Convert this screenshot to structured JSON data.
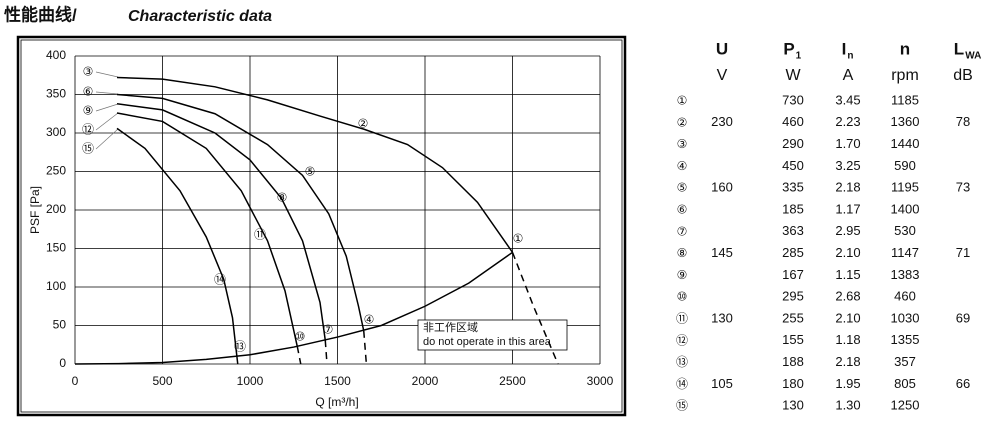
{
  "title_cn": "性能曲线/",
  "title_en": "Characteristic data",
  "chart_data": {
    "type": "line",
    "xlabel": "Q [m³/h]",
    "ylabel": "PSF [Pa]",
    "xlim": [
      0,
      3000
    ],
    "xticks": [
      0,
      500,
      1000,
      1500,
      2000,
      2500,
      3000
    ],
    "ylim": [
      0,
      400
    ],
    "yticks": [
      0,
      50,
      100,
      150,
      200,
      250,
      300,
      350,
      400
    ],
    "grid": true,
    "series": [
      {
        "color": "#000000",
        "style": "solid",
        "x": [
          240,
          500,
          800,
          1100,
          1400,
          1650,
          1900,
          2100,
          2300,
          2500
        ],
        "values": [
          372,
          370,
          360,
          343,
          322,
          305,
          285,
          255,
          210,
          145
        ]
      },
      {
        "color": "#000000",
        "style": "dashed",
        "x": [
          2500,
          2620,
          2760
        ],
        "values": [
          145,
          75,
          0
        ]
      },
      {
        "color": "#000000",
        "style": "solid",
        "x": [
          0,
          250,
          500,
          750,
          1000,
          1250,
          1500,
          1750,
          2000,
          2250,
          2500
        ],
        "values": [
          0,
          0.5,
          2,
          6,
          12,
          22,
          35,
          50,
          75,
          105,
          145
        ]
      },
      {
        "color": "#000000",
        "style": "solid",
        "x": [
          240,
          500,
          800,
          1100,
          1300,
          1450,
          1550,
          1620,
          1650
        ],
        "values": [
          350,
          345,
          325,
          285,
          245,
          195,
          140,
          75,
          43
        ]
      },
      {
        "color": "#000000",
        "style": "dashed",
        "x": [
          1650,
          1665
        ],
        "values": [
          43,
          0
        ]
      },
      {
        "color": "#000000",
        "style": "solid",
        "x": [
          240,
          500,
          800,
          1000,
          1180,
          1300,
          1400,
          1430
        ],
        "values": [
          338,
          330,
          300,
          265,
          215,
          160,
          80,
          31
        ]
      },
      {
        "color": "#000000",
        "style": "dashed",
        "x": [
          1430,
          1440
        ],
        "values": [
          31,
          0
        ]
      },
      {
        "color": "#000000",
        "style": "solid",
        "x": [
          240,
          500,
          750,
          950,
          1100,
          1200,
          1270
        ],
        "values": [
          326,
          315,
          280,
          225,
          160,
          95,
          23
        ]
      },
      {
        "color": "#000000",
        "style": "dashed",
        "x": [
          1270,
          1290
        ],
        "values": [
          23,
          0
        ]
      },
      {
        "color": "#000000",
        "style": "solid",
        "x": [
          240,
          400,
          600,
          750,
          850,
          900,
          930
        ],
        "values": [
          306,
          280,
          225,
          165,
          110,
          60,
          0
        ]
      }
    ],
    "curve_labels": [
      "①",
      "②",
      "③",
      "④",
      "⑤",
      "⑥",
      "⑦",
      "⑧",
      "⑨",
      "⑩",
      "⑪",
      "⑫",
      "⑬",
      "⑭",
      "⑮"
    ],
    "note_cn": "非工作区域",
    "note_en": "do not operate in this area"
  },
  "table": {
    "header_main": [
      "U",
      "P",
      "I",
      "n",
      "L"
    ],
    "header_sub": [
      null,
      "1",
      "n",
      null,
      "WA"
    ],
    "units": [
      "V",
      "W",
      "A",
      "rpm",
      "dB"
    ],
    "rows": [
      [
        "①",
        null,
        "730",
        "3.45",
        "1185",
        null
      ],
      [
        "②",
        "230",
        "460",
        "2.23",
        "1360",
        "78"
      ],
      [
        "③",
        null,
        "290",
        "1.70",
        "1440",
        null
      ],
      [
        "④",
        null,
        "450",
        "3.25",
        "590",
        null
      ],
      [
        "⑤",
        "160",
        "335",
        "2.18",
        "1195",
        "73"
      ],
      [
        "⑥",
        null,
        "185",
        "1.17",
        "1400",
        null
      ],
      [
        "⑦",
        null,
        "363",
        "2.95",
        "530",
        null
      ],
      [
        "⑧",
        "145",
        "285",
        "2.10",
        "1147",
        "71"
      ],
      [
        "⑨",
        null,
        "167",
        "1.15",
        "1383",
        null
      ],
      [
        "⑩",
        null,
        "295",
        "2.68",
        "460",
        null
      ],
      [
        "⑪",
        "130",
        "255",
        "2.10",
        "1030",
        "69"
      ],
      [
        "⑫",
        null,
        "155",
        "1.18",
        "1355",
        null
      ],
      [
        "⑬",
        null,
        "188",
        "2.18",
        "357",
        null
      ],
      [
        "⑭",
        "105",
        "180",
        "1.95",
        "805",
        "66"
      ],
      [
        "⑮",
        null,
        "130",
        "1.30",
        "1250",
        null
      ]
    ]
  }
}
